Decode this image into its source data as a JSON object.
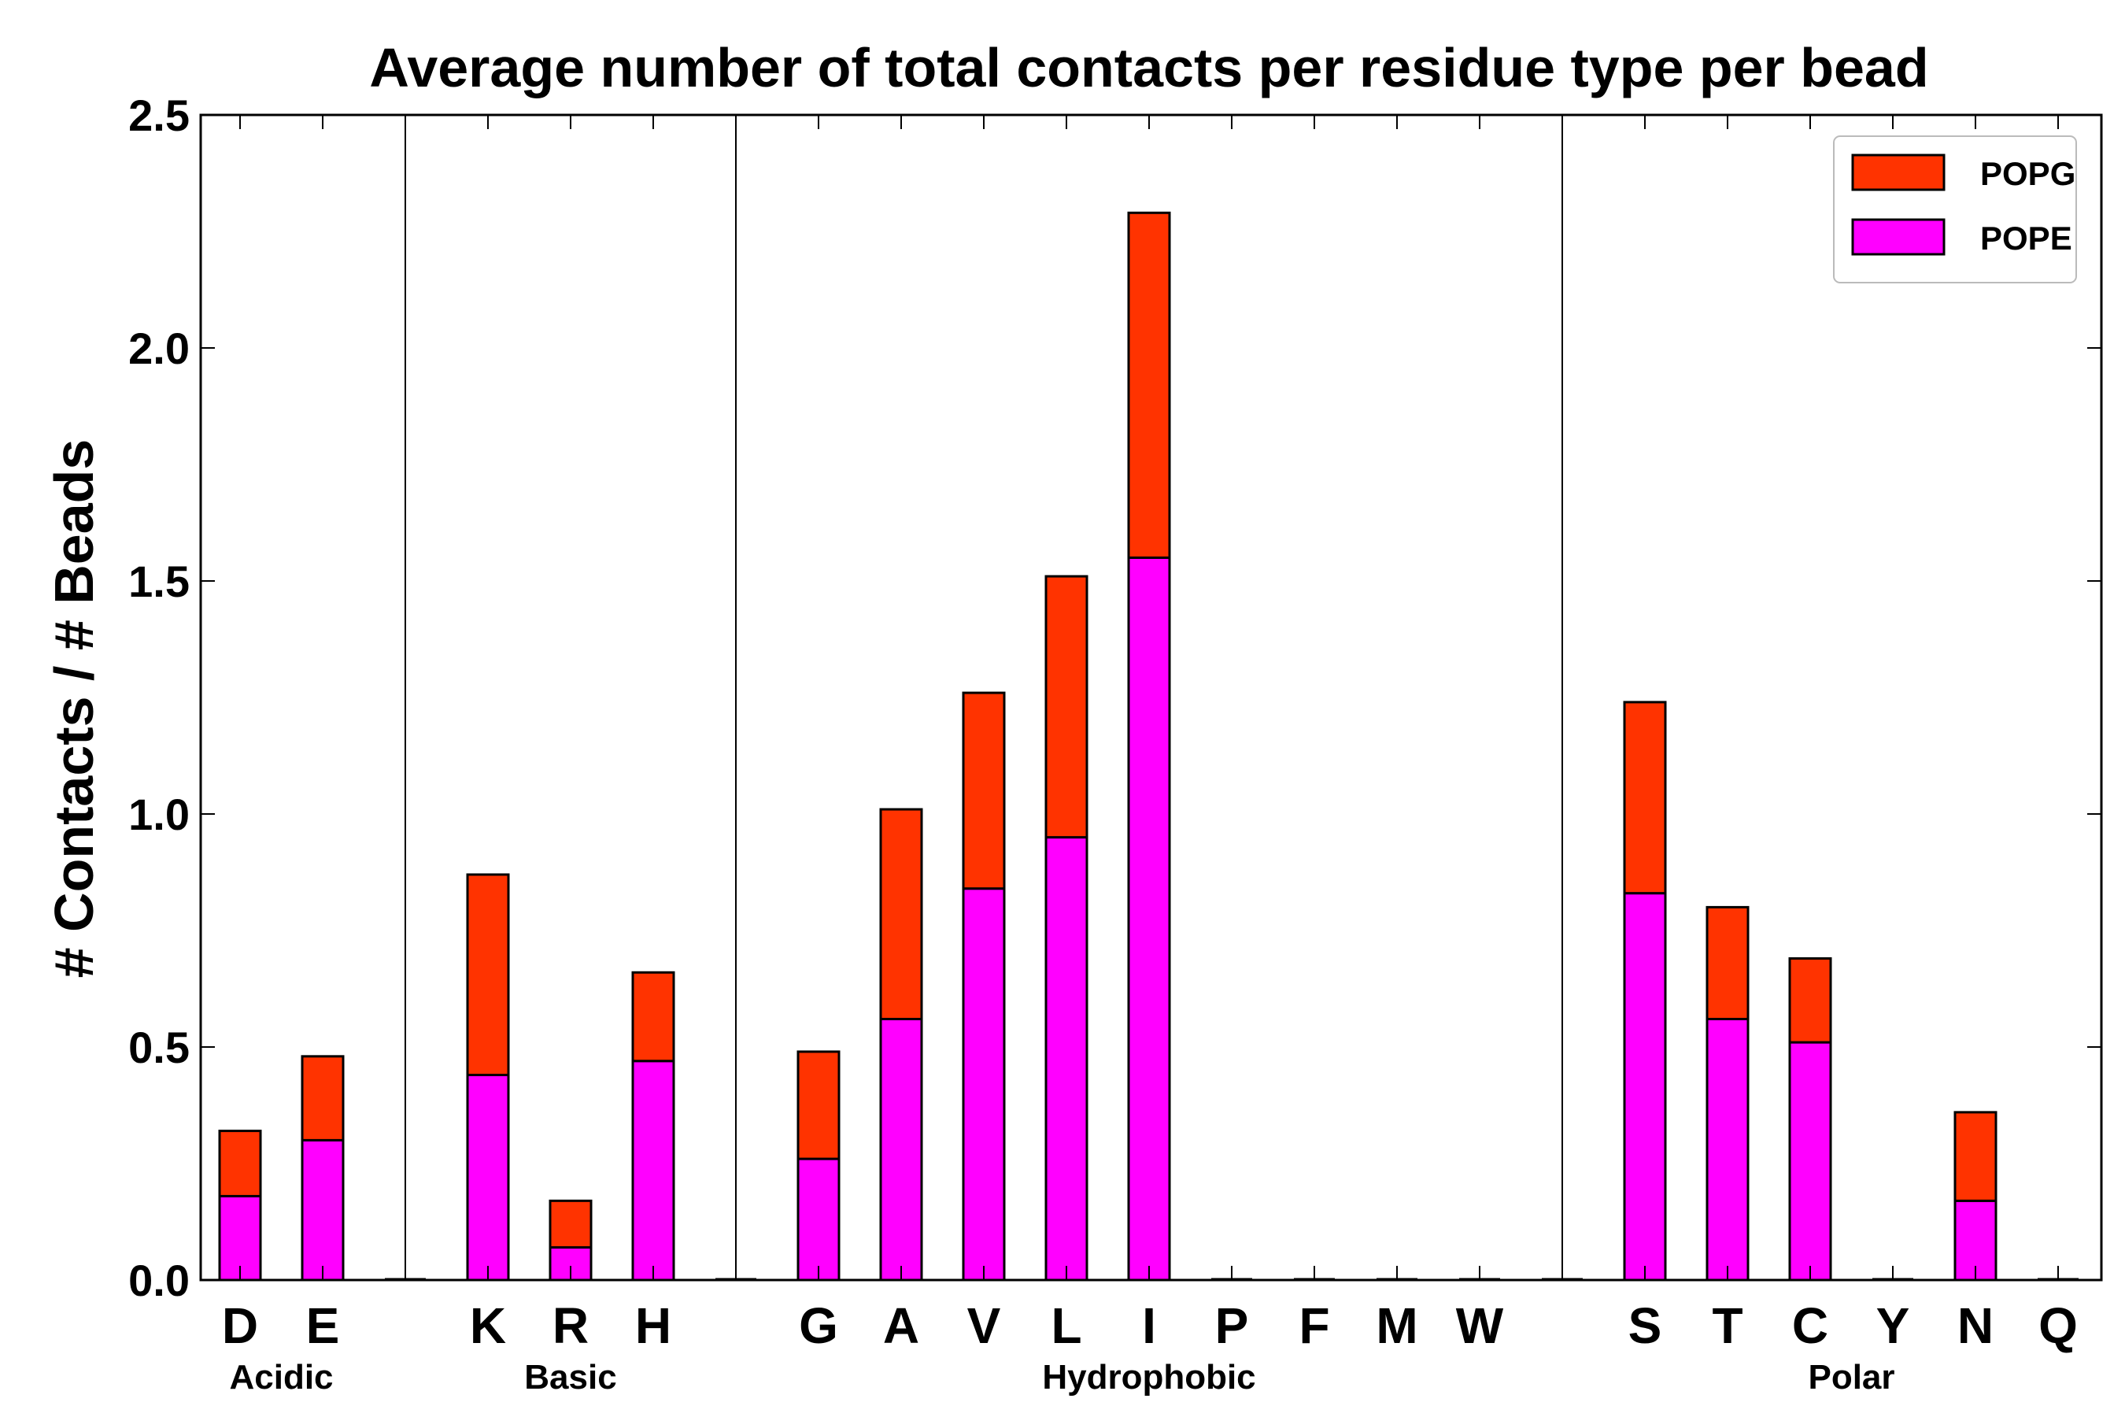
{
  "chart_data": {
    "type": "bar",
    "stacked": true,
    "title": "Average number of total contacts per residue type per bead",
    "xlabel": "",
    "ylabel": "# Contacts / # Beads",
    "ylim": [
      0,
      2.5
    ],
    "yticks": [
      "0.0",
      "0.5",
      "1.0",
      "1.5",
      "2.0",
      "2.5"
    ],
    "grid": false,
    "legend_position": "top-right",
    "categories": [
      "D",
      "E",
      "K",
      "R",
      "H",
      "G",
      "A",
      "V",
      "L",
      "I",
      "P",
      "F",
      "M",
      "W",
      "S",
      "T",
      "C",
      "Y",
      "N",
      "Q"
    ],
    "groups": [
      {
        "name": "Acidic",
        "members": [
          "D",
          "E"
        ]
      },
      {
        "name": "Basic",
        "members": [
          "K",
          "R",
          "H"
        ]
      },
      {
        "name": "Hydrophobic",
        "members": [
          "G",
          "A",
          "V",
          "L",
          "I",
          "P",
          "F",
          "M",
          "W"
        ]
      },
      {
        "name": "Polar",
        "members": [
          "S",
          "T",
          "C",
          "Y",
          "N",
          "Q"
        ]
      }
    ],
    "series": [
      {
        "name": "POPE",
        "color": "#ff00ff",
        "values": [
          0.18,
          0.3,
          0.44,
          0.07,
          0.47,
          0.26,
          0.56,
          0.84,
          0.95,
          1.55,
          0.0,
          0.0,
          0.0,
          0.0,
          0.83,
          0.56,
          0.51,
          0.0,
          0.17,
          0.0
        ]
      },
      {
        "name": "POPG",
        "color": "#ff3300",
        "values": [
          0.14,
          0.18,
          0.43,
          0.1,
          0.19,
          0.23,
          0.45,
          0.42,
          0.56,
          0.74,
          0.0,
          0.0,
          0.0,
          0.0,
          0.41,
          0.24,
          0.18,
          0.0,
          0.19,
          0.0
        ]
      }
    ],
    "legend_order": [
      "POPG",
      "POPE"
    ]
  }
}
